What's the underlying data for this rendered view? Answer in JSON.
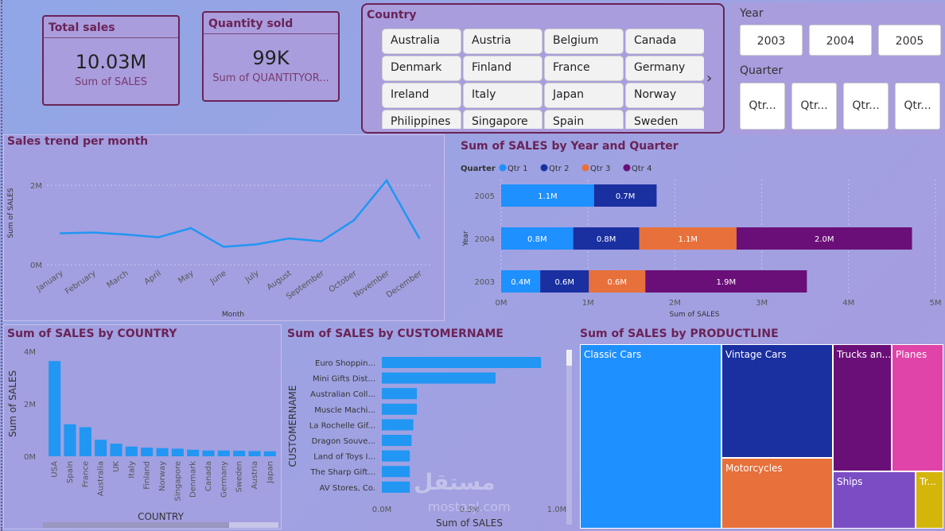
{
  "kpis": [
    {
      "title": "Total sales",
      "value": "10.03M",
      "sub": "Sum of SALES"
    },
    {
      "title": "Quantity sold",
      "value": "99K",
      "sub": "Sum of QUANTITYOR..."
    }
  ],
  "country_slicer": {
    "title": "Country",
    "items": [
      "Australia",
      "Austria",
      "Belgium",
      "Canada",
      "Denmark",
      "Finland",
      "France",
      "Germany",
      "Ireland",
      "Italy",
      "Japan",
      "Norway",
      "Philippines",
      "Singapore",
      "Spain",
      "Sweden"
    ],
    "next_icon": "chevron-right-icon"
  },
  "year_slicer": {
    "title": "Year",
    "items": [
      "2003",
      "2004",
      "2005"
    ]
  },
  "quarter_slicer": {
    "title": "Quarter",
    "items": [
      "Qtr...",
      "Qtr...",
      "Qtr...",
      "Qtr..."
    ]
  },
  "colors": {
    "accent": "#6b2356",
    "bar": "#2196f3",
    "q1": "#1e90ff",
    "q2": "#1a2fa0",
    "q3": "#e8703a",
    "q4": "#6a0f78"
  },
  "chart_data": [
    {
      "type": "line",
      "title": "Sales trend per month",
      "xlabel": "Month",
      "ylabel": "Sum of SALES",
      "categories": [
        "January",
        "February",
        "March",
        "April",
        "May",
        "June",
        "July",
        "August",
        "September",
        "October",
        "November",
        "December"
      ],
      "values": [
        0.79,
        0.81,
        0.76,
        0.69,
        0.92,
        0.45,
        0.51,
        0.66,
        0.59,
        1.12,
        2.12,
        0.67
      ],
      "ylim": [
        0,
        2.5
      ],
      "ytick_values": [
        0,
        2
      ],
      "ytick_labels": [
        "0M",
        "2M"
      ]
    },
    {
      "type": "bar",
      "orientation": "horizontal-stacked",
      "title": "Sum of SALES by Year and Quarter",
      "legend_title": "Quarter",
      "legend": [
        "Qtr 1",
        "Qtr 2",
        "Qtr 3",
        "Qtr 4"
      ],
      "categories": [
        "2005",
        "2004",
        "2003"
      ],
      "series": [
        {
          "name": "Qtr 1",
          "values": [
            1.07,
            0.83,
            0.45
          ],
          "labels": [
            "1.1M",
            "0.8M",
            "0.4M"
          ]
        },
        {
          "name": "Qtr 2",
          "values": [
            0.72,
            0.76,
            0.56
          ],
          "labels": [
            "0.7M",
            "0.8M",
            "0.6M"
          ]
        },
        {
          "name": "Qtr 3",
          "values": [
            0,
            1.12,
            0.65
          ],
          "labels": [
            "",
            "1.1M",
            "0.6M"
          ]
        },
        {
          "name": "Qtr 4",
          "values": [
            0,
            2.02,
            1.86
          ],
          "labels": [
            "",
            "2.0M",
            "1.9M"
          ]
        }
      ],
      "xlabel": "Sum of SALES",
      "ylabel": "Year",
      "xlim": [
        0,
        5
      ],
      "xtick_labels": [
        "0M",
        "1M",
        "2M",
        "3M",
        "4M",
        "5M"
      ]
    },
    {
      "type": "bar",
      "title": "Sum of SALES by COUNTRY",
      "xlabel": "COUNTRY",
      "ylabel": "Sum of SALES",
      "categories": [
        "USA",
        "Spain",
        "France",
        "Australia",
        "UK",
        "Italy",
        "Finland",
        "Norway",
        "Singapore",
        "Denmark",
        "Canada",
        "Germany",
        "Sweden",
        "Austria",
        "Japan"
      ],
      "values": [
        3.63,
        1.22,
        1.11,
        0.63,
        0.48,
        0.37,
        0.33,
        0.31,
        0.29,
        0.25,
        0.22,
        0.22,
        0.21,
        0.2,
        0.19
      ],
      "ylim": [
        0,
        4
      ],
      "ytick_values": [
        0,
        2,
        4
      ],
      "ytick_labels": [
        "0M",
        "2M",
        "4M"
      ]
    },
    {
      "type": "bar",
      "orientation": "horizontal",
      "title": "Sum of SALES by CUSTOMERNAME",
      "xlabel": "Sum of SALES",
      "ylabel": "CUSTOMERNAME",
      "categories": [
        "Euro Shoppin...",
        "Mini Gifts Dist...",
        "Australian Coll...",
        "Muscle Machi...",
        "La Rochelle Gif...",
        "Dragon Souve...",
        "Land of Toys I...",
        "The Sharp Gift...",
        "AV Stores, Co."
      ],
      "values": [
        0.91,
        0.65,
        0.2,
        0.2,
        0.18,
        0.17,
        0.16,
        0.16,
        0.16
      ],
      "xlim": [
        0,
        1.0
      ],
      "xtick_values": [
        0,
        0.5,
        1.0
      ],
      "xtick_labels": [
        "0.0M",
        "0.5M",
        "1.0M"
      ]
    },
    {
      "type": "treemap",
      "title": "Sum of SALES by PRODUCTLINE",
      "categories": [
        "Classic Cars",
        "Vintage Cars",
        "Motorcycles",
        "Trucks an...",
        "Planes",
        "Ships",
        "Tr..."
      ],
      "values": [
        3.92,
        1.9,
        1.17,
        1.13,
        0.98,
        0.71,
        0.23
      ]
    }
  ],
  "watermark": {
    "text": "مستقل",
    "sub": "mostaql.com"
  }
}
